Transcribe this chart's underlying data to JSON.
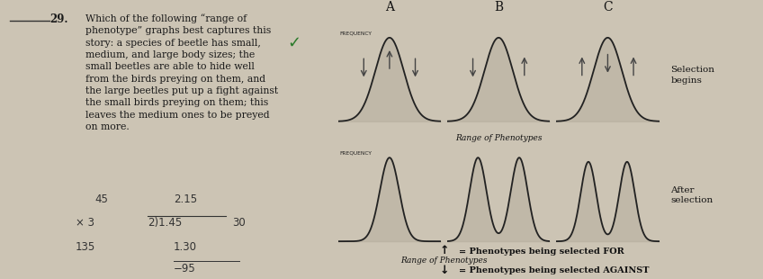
{
  "bg_color": "#ccc4b4",
  "left_bg": "#e8e2d6",
  "chart_bg": "#c8c0b0",
  "chart_area_bg": "#ccc4b4",
  "question_number": "29.",
  "question_text": "Which of the following “range of\nphenotype” graphs best captures this\nstory: a species of beetle has small,\nmedium, and large body sizes; the\nsmall beetles are able to hide well\nfrom the birds preying on them, and\nthe large beetles put up a fight against\nthe small birds preying on them; this\nleaves the medium ones to be preyed\non more.",
  "col_labels": [
    "A",
    "B",
    "C"
  ],
  "row_label_top": "Selection\nbegins",
  "row_label_bot": "After\nselection",
  "freq_label": "FREQUENCY",
  "range_label": "Range of Phenotypes",
  "legend_for": "= Phenotypes being selected FOR",
  "legend_against": "= Phenotypes being selected AGAINST",
  "math_text": "45      2.15\n×3   2)1.45    30\n135          1.30\n              −95",
  "checkmark": "✓",
  "checkmark_color": "#2a7a2a",
  "text_color": "#1a1a1a",
  "border_color": "#666666",
  "curve_color": "#222222",
  "curve_fill": "#b0a898",
  "arrow_color": "#444444"
}
